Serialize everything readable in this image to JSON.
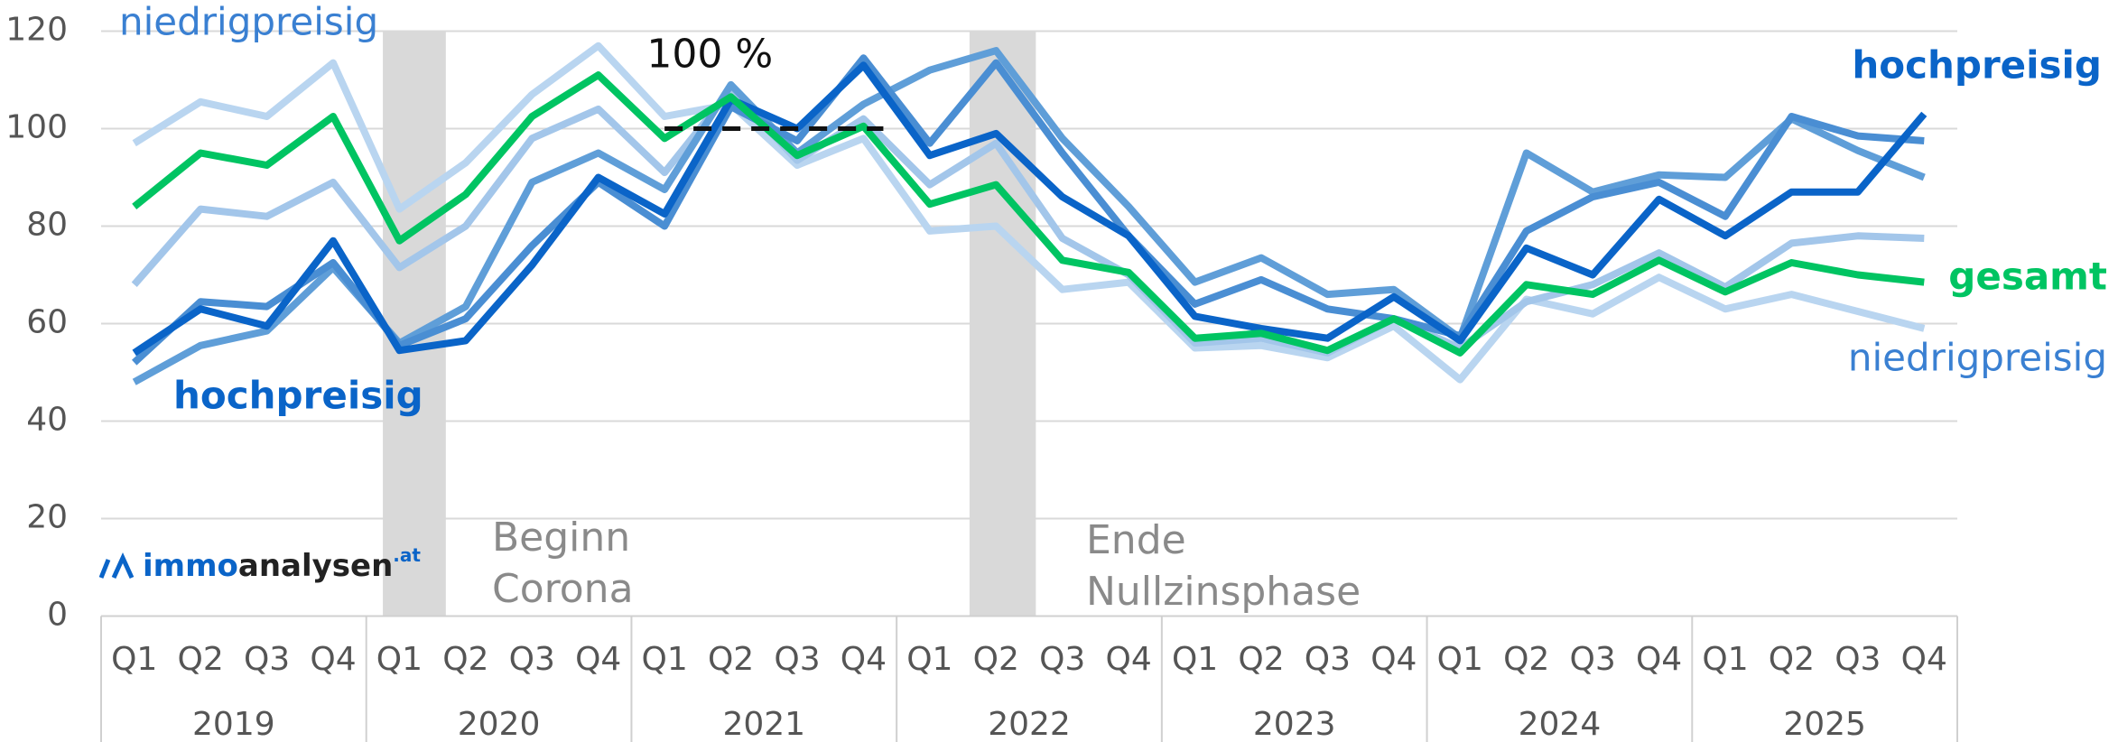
{
  "chart_data": {
    "type": "line",
    "categories": [
      "Q1",
      "Q2",
      "Q3",
      "Q4",
      "Q1",
      "Q2",
      "Q3",
      "Q4",
      "Q1",
      "Q2",
      "Q3",
      "Q4",
      "Q1",
      "Q2",
      "Q3",
      "Q4",
      "Q1",
      "Q2",
      "Q3",
      "Q4",
      "Q1",
      "Q2",
      "Q3",
      "Q4",
      "Q1",
      "Q2",
      "Q3",
      "Q4"
    ],
    "years": [
      "2019",
      "2020",
      "2021",
      "2022",
      "2023",
      "2024",
      "2025"
    ],
    "ylim": [
      0,
      120
    ],
    "yticks": [
      0,
      20,
      40,
      60,
      80,
      100,
      120
    ],
    "grid": true,
    "series": [
      {
        "name": "niedrigpreisig",
        "color": "#b9d5f0",
        "values": [
          97,
          105.5,
          102.5,
          113.5,
          83.5,
          93,
          107,
          117,
          102.5,
          105,
          92.5,
          98,
          79,
          80,
          67,
          68.5,
          55,
          55.5,
          53,
          59.5,
          48.5,
          65,
          62,
          69.5,
          63,
          66,
          62.5,
          59
        ]
      },
      {
        "color": "#a3c6ea",
        "values": [
          68,
          83.5,
          82,
          89,
          71.5,
          80,
          98,
          104,
          91,
          108,
          93.5,
          102,
          88.5,
          97,
          77.5,
          70,
          56,
          57,
          54,
          61,
          55,
          64.5,
          68,
          74.5,
          67.5,
          76.5,
          78,
          77.5
        ]
      },
      {
        "color": "#5f9ed8",
        "values": [
          48,
          55.5,
          58.5,
          71.5,
          56,
          63.5,
          89,
          95,
          87.5,
          109,
          95,
          105,
          112,
          116,
          98,
          84,
          68.5,
          73.5,
          66,
          67,
          57,
          95,
          87,
          90.5,
          90,
          102,
          95.5,
          90
        ]
      },
      {
        "color": "#4a8ed3",
        "values": [
          52,
          64.5,
          63.5,
          72.5,
          55.5,
          61,
          76,
          89,
          80,
          104.5,
          97.5,
          114.5,
          97,
          113.5,
          95,
          78,
          64,
          69,
          63,
          61,
          57.5,
          79,
          86,
          89,
          82,
          102.5,
          98.5,
          97.5
        ]
      },
      {
        "name": "hochpreisig",
        "color": "#0a64c8",
        "values": [
          54,
          63,
          59.5,
          77,
          54.5,
          56.5,
          72,
          90,
          82.5,
          106,
          100,
          113,
          94.5,
          99,
          86,
          78,
          61.5,
          59,
          57,
          65.5,
          56.5,
          75.5,
          70,
          85.5,
          78,
          87,
          87,
          103
        ]
      },
      {
        "name": "gesamt",
        "color": "#00c462",
        "values": [
          84,
          95,
          92.5,
          102.5,
          77,
          86.5,
          102.5,
          111,
          98,
          106.5,
          94.5,
          100.5,
          84.5,
          88.5,
          73,
          70.5,
          57,
          58,
          54.5,
          61,
          54,
          68,
          66,
          73,
          66.5,
          72.5,
          70,
          68.5
        ]
      }
    ],
    "reference": {
      "value": 100,
      "label": "100 %"
    },
    "annotations": [
      [
        "Beginn",
        "Corona"
      ],
      [
        "Ende",
        "Nullzinsphase"
      ]
    ],
    "logo": [
      "immo",
      "analysen",
      ".at"
    ]
  }
}
